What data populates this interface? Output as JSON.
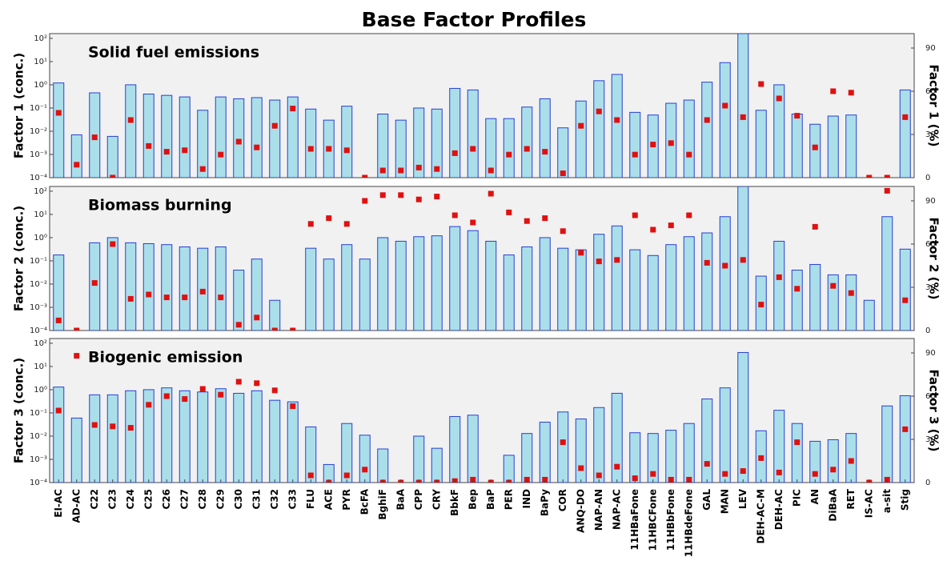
{
  "title": "Base Factor Profiles",
  "categories": [
    "EI-AC",
    "AD-AC",
    "C22",
    "C23",
    "C24",
    "C25",
    "C26",
    "C27",
    "C28",
    "C29",
    "C30",
    "C31",
    "C32",
    "C33",
    "FLU",
    "ACE",
    "PYR",
    "BcFA",
    "BghiF",
    "BaA",
    "CPP",
    "CRY",
    "BbkF",
    "Bep",
    "BaP",
    "PER",
    "IND",
    "BaPy",
    "COR",
    "ANQ-DO",
    "NAP-AN",
    "NAP-AC",
    "11HBaFone",
    "11HBCFone",
    "11HBbFone",
    "11HBdeFone",
    "GAL",
    "MAN",
    "LEV",
    "DEH-AC-M",
    "DEH-AC",
    "PIC",
    "AN",
    "DiBaA",
    "RET",
    "IS-AC",
    "a-sit",
    "Stig"
  ],
  "chart_data": [
    {
      "type": "bar",
      "annotation": "Solid fuel emissions",
      "ylabel": "Factor 1 (conc.)",
      "y2label": "Factor 1 (%)",
      "ylog": true,
      "ylim": [
        0.0001,
        160
      ],
      "yticks": [
        {
          "value": 0.0001,
          "label": "10⁻⁴"
        },
        {
          "value": 0.001,
          "label": "10⁻³"
        },
        {
          "value": 0.01,
          "label": "10⁻²"
        },
        {
          "value": 0.1,
          "label": "10⁻¹"
        },
        {
          "value": 1,
          "label": "10⁰"
        },
        {
          "value": 10,
          "label": "10¹"
        },
        {
          "value": 100,
          "label": "10²"
        }
      ],
      "y2lim": [
        0,
        100
      ],
      "y2ticks": [
        0,
        30,
        60,
        90
      ],
      "series": [
        {
          "type": "bar",
          "color": "#aadfea",
          "values": [
            1.2,
            0.007,
            0.45,
            0.006,
            1.0,
            0.4,
            0.35,
            0.3,
            0.08,
            0.3,
            0.25,
            0.28,
            0.22,
            0.3,
            0.09,
            0.03,
            0.12,
            null,
            0.055,
            0.03,
            0.1,
            0.09,
            0.7,
            0.6,
            0.035,
            0.035,
            0.11,
            0.25,
            0.014,
            0.2,
            1.5,
            2.8,
            0.065,
            0.05,
            0.16,
            0.22,
            1.3,
            9,
            160,
            0.08,
            1.0,
            0.055,
            0.02,
            0.045,
            0.05,
            null,
            null,
            0.6
          ]
        },
        {
          "type": "scatter",
          "axis": "y2",
          "color": "#e01010",
          "values": [
            45,
            9,
            28,
            0,
            40,
            22,
            18,
            19,
            6,
            16,
            25,
            21,
            36,
            48,
            20,
            20,
            19,
            0,
            5,
            5,
            7,
            6,
            17,
            20,
            5,
            16,
            20,
            18,
            3,
            36,
            46,
            40,
            16,
            23,
            24,
            16,
            40,
            50,
            42,
            65,
            55,
            43,
            21,
            60,
            59,
            0,
            0,
            42
          ]
        }
      ]
    },
    {
      "type": "bar",
      "annotation": "Biomass burning",
      "ylabel": "Factor 2 (conc.)",
      "y2label": "Factor 2 (%)",
      "ylog": true,
      "ylim": [
        0.0001,
        160
      ],
      "yticks": [
        {
          "value": 0.0001,
          "label": "10⁻⁴"
        },
        {
          "value": 0.001,
          "label": "10⁻³"
        },
        {
          "value": 0.01,
          "label": "10⁻²"
        },
        {
          "value": 0.1,
          "label": "10⁻¹"
        },
        {
          "value": 1,
          "label": "10⁰"
        },
        {
          "value": 10,
          "label": "10¹"
        },
        {
          "value": 100,
          "label": "10²"
        }
      ],
      "y2lim": [
        0,
        100
      ],
      "y2ticks": [
        0,
        30,
        60,
        90
      ],
      "series": [
        {
          "type": "bar",
          "color": "#aadfea",
          "values": [
            0.18,
            null,
            0.6,
            1.0,
            0.6,
            0.55,
            0.5,
            0.4,
            0.35,
            0.4,
            0.04,
            0.12,
            0.002,
            null,
            0.35,
            0.12,
            0.5,
            0.12,
            1.0,
            0.7,
            1.1,
            1.2,
            3,
            2,
            0.7,
            0.18,
            0.4,
            1.0,
            0.35,
            0.3,
            1.4,
            3.2,
            0.3,
            0.17,
            0.5,
            1.1,
            1.6,
            8,
            160,
            0.022,
            0.7,
            0.04,
            0.07,
            0.025,
            0.025,
            0.002,
            8,
            0.32
          ]
        },
        {
          "type": "scatter",
          "axis": "y2",
          "color": "#e01010",
          "values": [
            7,
            0,
            33,
            60,
            22,
            25,
            23,
            23,
            27,
            23,
            4,
            9,
            0,
            0,
            74,
            78,
            74,
            90,
            94,
            94,
            91,
            93,
            80,
            75,
            95,
            82,
            76,
            78,
            69,
            54,
            48,
            49,
            80,
            70,
            73,
            80,
            47,
            45,
            49,
            18,
            37,
            29,
            72,
            31,
            26,
            null,
            97,
            21
          ]
        }
      ]
    },
    {
      "type": "bar",
      "annotation": "Biogenic emission",
      "ylabel": "Factor 3 (conc.)",
      "y2label": "Factor 3 (%)",
      "ylog": true,
      "ylim": [
        0.0001,
        160
      ],
      "yticks": [
        {
          "value": 0.0001,
          "label": "10⁻⁴"
        },
        {
          "value": 0.001,
          "label": "10⁻³"
        },
        {
          "value": 0.01,
          "label": "10⁻²"
        },
        {
          "value": 0.1,
          "label": "10⁻¹"
        },
        {
          "value": 1,
          "label": "10⁰"
        },
        {
          "value": 10,
          "label": "10¹"
        },
        {
          "value": 100,
          "label": "10²"
        }
      ],
      "y2lim": [
        0,
        100
      ],
      "y2ticks": [
        0,
        30,
        60,
        90
      ],
      "series": [
        {
          "type": "bar",
          "color": "#aadfea",
          "values": [
            1.3,
            0.06,
            0.6,
            0.6,
            0.9,
            1.0,
            1.2,
            0.9,
            0.8,
            1.1,
            0.7,
            0.9,
            0.35,
            0.3,
            0.025,
            0.0006,
            0.035,
            0.011,
            0.0028,
            null,
            0.01,
            0.003,
            0.07,
            0.08,
            null,
            0.0015,
            0.013,
            0.04,
            0.11,
            0.055,
            0.17,
            0.7,
            0.014,
            0.013,
            0.018,
            0.035,
            0.4,
            1.2,
            40,
            0.017,
            0.13,
            0.035,
            0.006,
            0.007,
            0.013,
            null,
            0.2,
            0.55
          ]
        },
        {
          "type": "scatter",
          "axis": "y2",
          "color": "#e01010",
          "values": [
            50,
            88,
            40,
            39,
            38,
            54,
            60,
            58,
            65,
            61,
            70,
            69,
            64,
            53,
            5,
            0,
            5,
            9,
            0,
            0,
            0,
            0,
            1,
            2,
            0,
            0,
            2,
            2,
            28,
            10,
            5,
            11,
            3,
            6,
            2,
            2,
            13,
            6,
            8,
            17,
            7,
            28,
            6,
            9,
            15,
            0,
            2,
            37
          ]
        }
      ]
    }
  ]
}
